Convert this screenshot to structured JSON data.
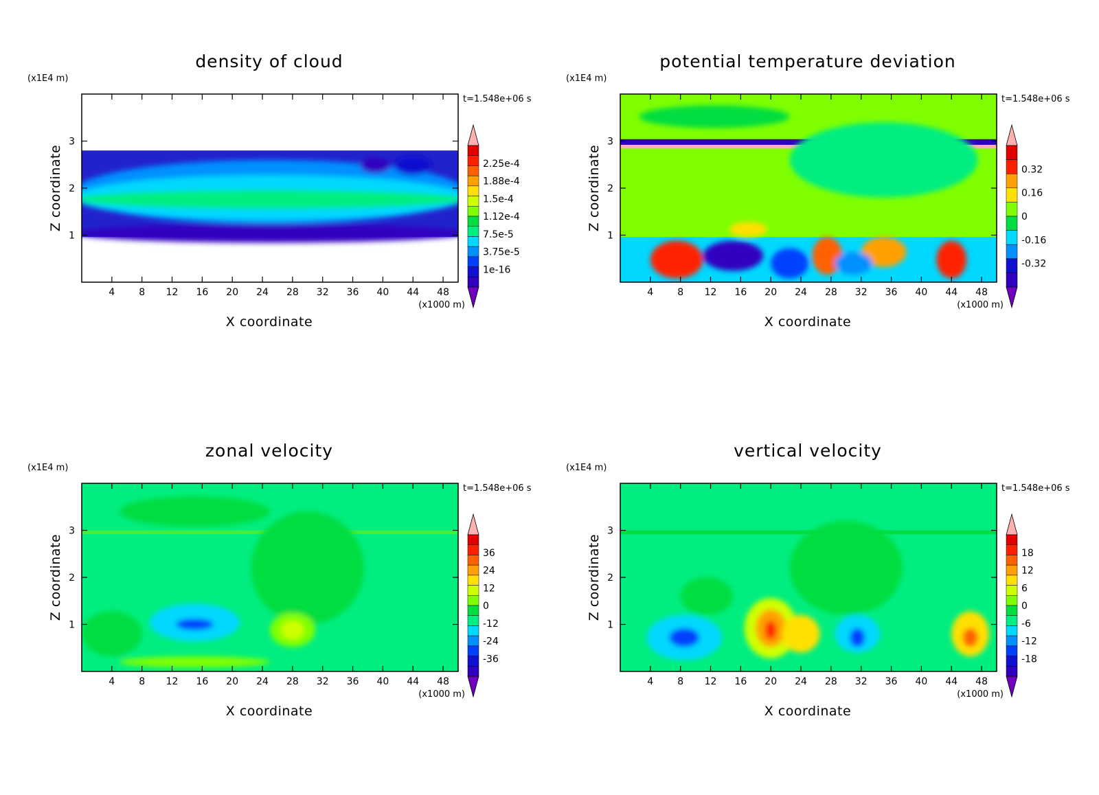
{
  "chart_data": [
    {
      "type": "heatmap",
      "title": "density of cloud",
      "xlabel": "X coordinate",
      "ylabel": "Z coordinate",
      "x_unit": "(x1000 m)",
      "y_unit": "(x1E4 m)",
      "time_label": "t=1.548e+06 s",
      "xticks": [
        "4",
        "8",
        "12",
        "16",
        "20",
        "24",
        "28",
        "32",
        "36",
        "40",
        "44",
        "48"
      ],
      "yticks": [
        "1",
        "2",
        "3"
      ],
      "xlim": [
        0,
        50
      ],
      "ylim": [
        0,
        4
      ],
      "colorbar_levels": [
        "2.25e-4",
        "1.88e-4",
        "1.5e-4",
        "1.12e-4",
        "7.5e-5",
        "3.75e-5",
        "1e-16"
      ],
      "colors": {
        "background": "#00ee80",
        "accent": "#2222cc"
      }
    },
    {
      "type": "heatmap",
      "title": "potential temperature deviation",
      "xlabel": "X coordinate",
      "ylabel": "Z coordinate",
      "x_unit": "(x1000 m)",
      "y_unit": "(x1E4 m)",
      "time_label": "t=1.548e+06 s",
      "xticks": [
        "4",
        "8",
        "12",
        "16",
        "20",
        "24",
        "28",
        "32",
        "36",
        "40",
        "44",
        "48"
      ],
      "yticks": [
        "1",
        "2",
        "3"
      ],
      "xlim": [
        0,
        50
      ],
      "ylim": [
        0,
        4
      ],
      "colorbar_levels": [
        "0.32",
        "0.16",
        "0",
        "-0.16",
        "-0.32"
      ],
      "colors": {
        "background": "#80ff00",
        "accent": "#00ee80"
      }
    },
    {
      "type": "heatmap",
      "title": "zonal velocity",
      "xlabel": "X coordinate",
      "ylabel": "Z coordinate",
      "x_unit": "(x1000 m)",
      "y_unit": "(x1E4 m)",
      "time_label": "t=1.548e+06 s",
      "xticks": [
        "4",
        "8",
        "12",
        "16",
        "20",
        "24",
        "28",
        "32",
        "36",
        "40",
        "44",
        "48"
      ],
      "yticks": [
        "1",
        "2",
        "3"
      ],
      "xlim": [
        0,
        50
      ],
      "ylim": [
        0,
        4
      ],
      "colorbar_levels": [
        "36",
        "24",
        "12",
        "0",
        "-12",
        "-24",
        "-36"
      ],
      "colors": {
        "background": "#00ee80",
        "accent": "#40ee40"
      }
    },
    {
      "type": "heatmap",
      "title": "vertical velocity",
      "xlabel": "X coordinate",
      "ylabel": "Z coordinate",
      "x_unit": "(x1000 m)",
      "y_unit": "(x1E4 m)",
      "time_label": "t=1.548e+06 s",
      "xticks": [
        "4",
        "8",
        "12",
        "16",
        "20",
        "24",
        "28",
        "32",
        "36",
        "40",
        "44",
        "48"
      ],
      "yticks": [
        "1",
        "2",
        "3"
      ],
      "xlim": [
        0,
        50
      ],
      "ylim": [
        0,
        4
      ],
      "colorbar_levels": [
        "18",
        "12",
        "6",
        "0",
        "-6",
        "-12",
        "-18"
      ],
      "colors": {
        "background": "#00ee80",
        "accent": "#ffe000"
      }
    }
  ],
  "colormap": [
    "#7000c0",
    "#3000c0",
    "#1010d0",
    "#0040ff",
    "#0090ff",
    "#00d8ff",
    "#00ee80",
    "#00dd40",
    "#80ff00",
    "#d0ff00",
    "#ffe000",
    "#ffa000",
    "#ff6000",
    "#ff2000",
    "#e00000",
    "#ffb0b0"
  ]
}
